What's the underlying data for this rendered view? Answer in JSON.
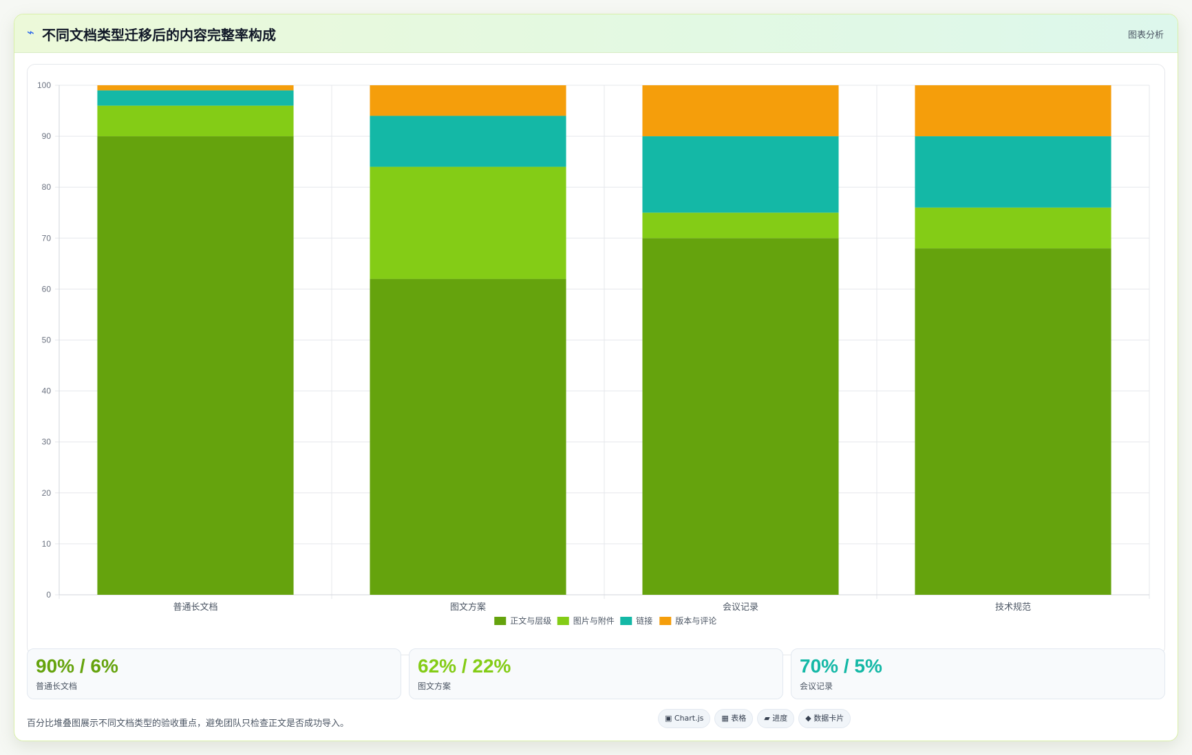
{
  "header": {
    "icon": "activity-icon",
    "title": "不同文档类型迁移后的内容完整率构成",
    "right_label": "图表分析"
  },
  "chart_data": {
    "type": "bar",
    "stacked": true,
    "categories": [
      "普通长文档",
      "图文方案",
      "会议记录",
      "技术规范"
    ],
    "series": [
      {
        "name": "正文与层级",
        "color": "#65a30d",
        "values": [
          90,
          62,
          70,
          68
        ]
      },
      {
        "name": "图片与附件",
        "color": "#84cc16",
        "values": [
          6,
          22,
          5,
          8
        ]
      },
      {
        "name": "链接",
        "color": "#14b8a6",
        "values": [
          3,
          10,
          15,
          14
        ]
      },
      {
        "name": "版本与评论",
        "color": "#f59e0b",
        "values": [
          1,
          6,
          10,
          10
        ]
      }
    ],
    "ylim": [
      0,
      100
    ],
    "yticks": [
      0,
      10,
      20,
      30,
      40,
      50,
      60,
      70,
      80,
      90,
      100
    ],
    "grid": true,
    "legend": "bottom"
  },
  "stats": [
    {
      "value": "90% / 6%",
      "label": "普通长文档",
      "color": "#65a30d"
    },
    {
      "value": "62% / 22%",
      "label": "图文方案",
      "color": "#84cc16"
    },
    {
      "value": "70% / 5%",
      "label": "会议记录",
      "color": "#14b8a6"
    }
  ],
  "footnote": "百分比堆叠图展示不同文档类型的验收重点，避免团队只检查正文是否成功导入。",
  "tags": [
    {
      "icon": "chart-icon",
      "label": "▣ Chart.js"
    },
    {
      "icon": "table-icon",
      "label": "▦ 表格"
    },
    {
      "icon": "progress-icon",
      "label": "▰ 进度"
    },
    {
      "icon": "card-icon",
      "label": "◆ 数据卡片"
    }
  ]
}
